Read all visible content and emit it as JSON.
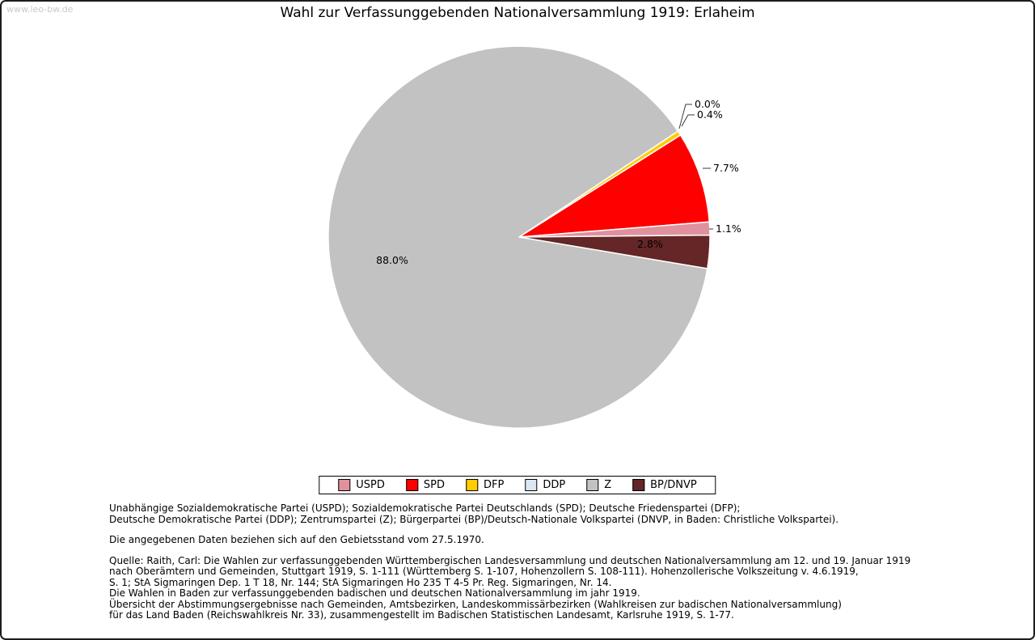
{
  "watermark": "www.leo-bw.de",
  "title": "Wahl zur Verfassunggebenden Nationalversammlung 1919: Erlaheim",
  "chart_data": {
    "type": "pie",
    "title": "Wahl zur Verfassunggebenden Nationalversammlung 1919: Erlaheim",
    "slices": [
      {
        "party": "DDP",
        "value": 0.0,
        "display": "0.0%",
        "color": "#dbe8f4"
      },
      {
        "party": "DFP",
        "value": 0.4,
        "display": "0.4%",
        "color": "#ffcc00"
      },
      {
        "party": "SPD",
        "value": 7.7,
        "display": "7.7%",
        "color": "#ff0000"
      },
      {
        "party": "USPD",
        "value": 1.1,
        "display": "1.1%",
        "color": "#e0919d"
      },
      {
        "party": "BP/DNVP",
        "value": 2.8,
        "display": "2.8%",
        "color": "#642626"
      },
      {
        "party": "Z",
        "value": 88.0,
        "display": "88.0%",
        "color": "#c2c2c2"
      }
    ],
    "legend": [
      "USPD",
      "SPD",
      "DFP",
      "DDP",
      "Z",
      "BP/DNVP"
    ],
    "legend_position": "bottom"
  },
  "notes": {
    "abbreviations": "Unabhängige Sozialdemokratische Partei (USPD); Sozialdemokratische Partei Deutschlands (SPD); Deutsche Friedenspartei (DFP);\nDeutsche Demokratische Partei (DDP); Zentrumspartei (Z); Bürgerpartei (BP)/Deutsch-Nationale Volkspartei (DNVP, in Baden: Christliche Volkspartei).",
    "data_note": "Die angegebenen Daten beziehen sich auf den Gebietsstand vom 27.5.1970.",
    "source": "Quelle: Raith, Carl: Die Wahlen zur verfassunggebenden Württembergischen Landesversammlung und deutschen Nationalversammlung am 12. und 19. Januar 1919\nnach Oberämtern und Gemeinden, Stuttgart 1919, S. 1-111 (Württemberg S. 1-107, Hohenzollern S. 108-111). Hohenzollerische Volkszeitung v. 4.6.1919,\nS. 1; StA Sigmaringen Dep. 1 T 18, Nr. 144; StA Sigmaringen Ho 235 T 4-5 Pr. Reg. Sigmaringen, Nr. 14.\nDie Wahlen in Baden zur verfassunggebenden badischen und deutschen Nationalversammlung im jahr 1919.\nÜbersicht der Abstimmungsergebnisse nach Gemeinden, Amtsbezirken, Landeskommissärbezirken (Wahlkreisen zur badischen Nationalversammlung)\nfür das Land Baden (Reichswahlkreis Nr. 33), zusammengestellt im Badischen Statistischen Landesamt, Karlsruhe 1919, S. 1-77."
  }
}
